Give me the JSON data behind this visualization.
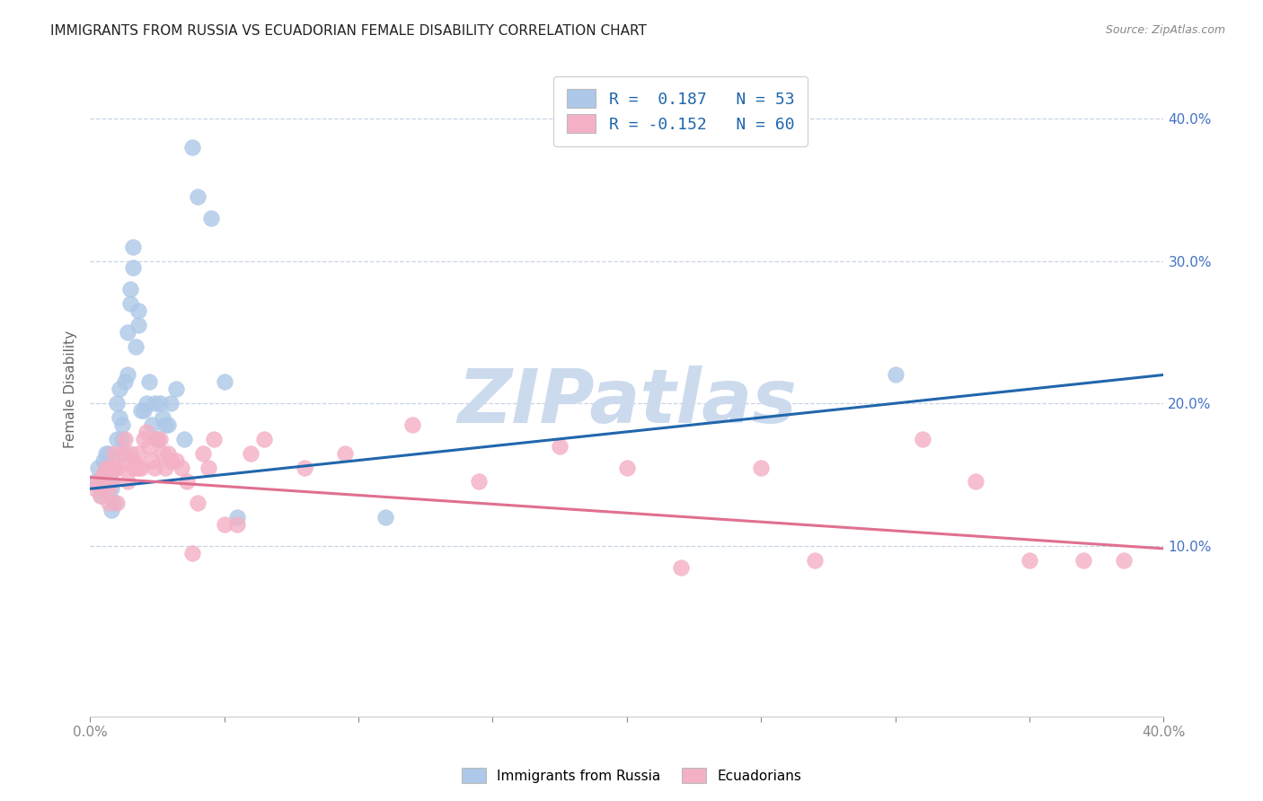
{
  "title": "IMMIGRANTS FROM RUSSIA VS ECUADORIAN FEMALE DISABILITY CORRELATION CHART",
  "source": "Source: ZipAtlas.com",
  "ylabel": "Female Disability",
  "right_ytick_vals": [
    0.1,
    0.2,
    0.3,
    0.4
  ],
  "xlim": [
    0.0,
    0.4
  ],
  "ylim": [
    -0.02,
    0.44
  ],
  "watermark": "ZIPatlas",
  "blue_scatter_x": [
    0.002,
    0.003,
    0.004,
    0.004,
    0.005,
    0.005,
    0.006,
    0.006,
    0.007,
    0.007,
    0.008,
    0.008,
    0.008,
    0.009,
    0.009,
    0.01,
    0.01,
    0.011,
    0.011,
    0.012,
    0.012,
    0.013,
    0.013,
    0.014,
    0.014,
    0.015,
    0.015,
    0.016,
    0.016,
    0.017,
    0.018,
    0.018,
    0.019,
    0.02,
    0.021,
    0.022,
    0.023,
    0.024,
    0.025,
    0.026,
    0.027,
    0.028,
    0.029,
    0.03,
    0.032,
    0.035,
    0.038,
    0.04,
    0.045,
    0.05,
    0.055,
    0.11,
    0.3
  ],
  "blue_scatter_y": [
    0.145,
    0.155,
    0.14,
    0.135,
    0.15,
    0.16,
    0.155,
    0.165,
    0.155,
    0.165,
    0.145,
    0.14,
    0.125,
    0.155,
    0.13,
    0.2,
    0.175,
    0.19,
    0.21,
    0.185,
    0.175,
    0.215,
    0.165,
    0.25,
    0.22,
    0.28,
    0.27,
    0.31,
    0.295,
    0.24,
    0.265,
    0.255,
    0.195,
    0.195,
    0.2,
    0.215,
    0.185,
    0.2,
    0.175,
    0.2,
    0.19,
    0.185,
    0.185,
    0.2,
    0.21,
    0.175,
    0.38,
    0.345,
    0.33,
    0.215,
    0.12,
    0.12,
    0.22
  ],
  "pink_scatter_x": [
    0.002,
    0.003,
    0.004,
    0.005,
    0.006,
    0.007,
    0.007,
    0.008,
    0.008,
    0.009,
    0.01,
    0.01,
    0.011,
    0.012,
    0.013,
    0.014,
    0.015,
    0.016,
    0.016,
    0.017,
    0.018,
    0.018,
    0.019,
    0.02,
    0.021,
    0.022,
    0.023,
    0.024,
    0.025,
    0.026,
    0.027,
    0.028,
    0.029,
    0.03,
    0.032,
    0.034,
    0.036,
    0.038,
    0.04,
    0.042,
    0.044,
    0.046,
    0.05,
    0.055,
    0.06,
    0.065,
    0.08,
    0.095,
    0.12,
    0.145,
    0.175,
    0.2,
    0.22,
    0.25,
    0.27,
    0.31,
    0.33,
    0.35,
    0.37,
    0.385
  ],
  "pink_scatter_y": [
    0.14,
    0.145,
    0.135,
    0.15,
    0.155,
    0.14,
    0.13,
    0.155,
    0.145,
    0.165,
    0.155,
    0.13,
    0.155,
    0.165,
    0.175,
    0.145,
    0.165,
    0.155,
    0.16,
    0.155,
    0.155,
    0.165,
    0.155,
    0.175,
    0.18,
    0.17,
    0.16,
    0.155,
    0.175,
    0.175,
    0.165,
    0.155,
    0.165,
    0.16,
    0.16,
    0.155,
    0.145,
    0.095,
    0.13,
    0.165,
    0.155,
    0.175,
    0.115,
    0.115,
    0.165,
    0.175,
    0.155,
    0.165,
    0.185,
    0.145,
    0.17,
    0.155,
    0.085,
    0.155,
    0.09,
    0.175,
    0.145,
    0.09,
    0.09,
    0.09
  ],
  "blue_line_x": [
    0.0,
    0.4
  ],
  "blue_line_y": [
    0.14,
    0.22
  ],
  "pink_line_x": [
    0.0,
    0.4
  ],
  "pink_line_y": [
    0.148,
    0.098
  ],
  "legend_r1": "R =  0.187   N = 53",
  "legend_r2": "R = -0.152   N = 60",
  "legend_label1": "Immigrants from Russia",
  "legend_label2": "Ecuadorians",
  "blue_color": "#adc8e8",
  "blue_line_color": "#2166ac",
  "pink_color": "#f4b0c4",
  "pink_line_color": "#e07090",
  "right_axis_color": "#4472c4",
  "watermark_color": "#ccdaee",
  "grid_color": "#c8d4e4",
  "background_color": "#ffffff"
}
